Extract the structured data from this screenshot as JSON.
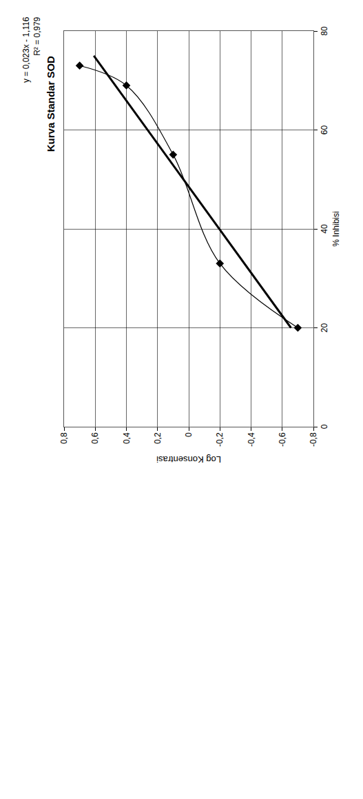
{
  "chart_data": {
    "type": "scatter",
    "title": "Kurva Standar SOD",
    "x_label": "% Inhibisi",
    "y_label": "Log Konsentrasi",
    "series": [
      {
        "x": [
          73,
          69,
          55,
          33,
          20
        ],
        "values": [
          0.7,
          0.4,
          0.1,
          -0.2,
          -0.7
        ],
        "color": "#000000",
        "marker": "diamond",
        "line_style": "smooth"
      },
      {
        "x": [
          20,
          75
        ],
        "values": [
          -0.656,
          0.609
        ],
        "color": "#000000",
        "line_style": "solid"
      }
    ],
    "annotations": [
      "y = 0,023x - 1,116",
      "R² = 0,979"
    ],
    "xlim": [
      0,
      80
    ],
    "xticks": [
      0,
      20,
      40,
      60,
      80
    ],
    "ylim": [
      -0.8,
      0.8
    ],
    "yticks": [
      {
        "value": -0.8,
        "label": "-0,8"
      },
      {
        "value": -0.6,
        "label": "-0,6"
      },
      {
        "value": -0.4,
        "label": "-0,4"
      },
      {
        "value": -0.2,
        "label": "-0,2"
      },
      0,
      {
        "value": 0.2,
        "label": "0,2"
      },
      {
        "value": 0.4,
        "label": "0,4"
      },
      {
        "value": 0.6,
        "label": "0,6"
      },
      {
        "value": 0.8,
        "label": "0,8"
      }
    ],
    "grid": true
  }
}
